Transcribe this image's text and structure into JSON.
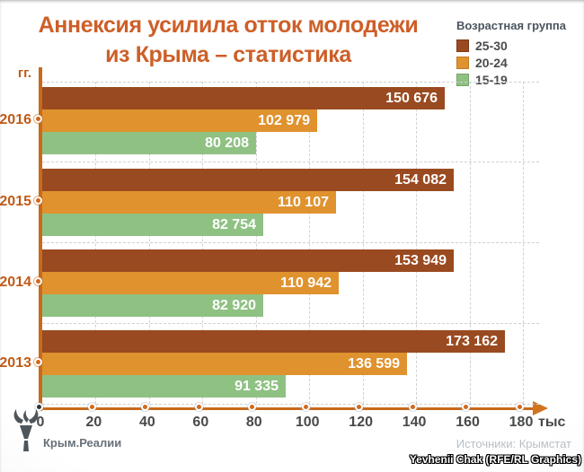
{
  "title": {
    "line1": "Аннексия усилила отток молодежи",
    "line2": "из Крыма – статистика"
  },
  "legend": {
    "title": "Возрастная группа"
  },
  "axis": {
    "y_unit": "гг.",
    "x_unit": "тыс",
    "x_ticks": [
      "0",
      "20",
      "40",
      "60",
      "80",
      "100",
      "120",
      "140",
      "160",
      "180"
    ]
  },
  "chart_data": {
    "type": "bar",
    "orientation": "horizontal",
    "title": "Аннексия усилила отток молодежи из Крыма – статистика",
    "categories": [
      "2016",
      "2015",
      "2014",
      "2013"
    ],
    "series": [
      {
        "name": "25-30",
        "color": "#9a4a20",
        "border": "#7c3a16",
        "values": [
          150676,
          154082,
          153949,
          173162
        ],
        "labels": [
          "150 676",
          "154 082",
          "153 949",
          "173 162"
        ]
      },
      {
        "name": "20-24",
        "color": "#e0922e",
        "border": "#c07b22",
        "values": [
          102979,
          110107,
          110942,
          136599
        ],
        "labels": [
          "102 979",
          "110 107",
          "110 942",
          "136 599"
        ]
      },
      {
        "name": "15-19",
        "color": "#8fc183",
        "border": "#74a563",
        "values": [
          80208,
          82754,
          82920,
          91335
        ],
        "labels": [
          "80 208",
          "82 754",
          "82 920",
          "91 335"
        ]
      }
    ],
    "xlim": [
      0,
      180000
    ],
    "x_tick_step": 20000,
    "xlabel": "тыс",
    "ylabel": "гг.",
    "grid": "dashed",
    "legend_position": "top-right"
  },
  "footer": {
    "logo_text": "Крым.Реалии",
    "source": "Источники: Крымстат",
    "credit": "Yevhenii Chak (RFE/RL Graphics)"
  },
  "colors": {
    "title": "#cd5f28",
    "axis": "#c86a1c",
    "year_label": "#c05a17",
    "tick_label": "#48494b",
    "tick_dot": "#d2691e",
    "zero_dot": "#333333",
    "grid": "#cfd1d3"
  }
}
